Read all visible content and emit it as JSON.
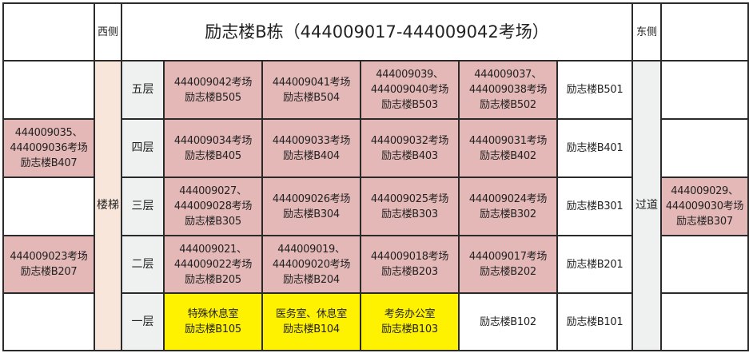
{
  "header": {
    "west_side": "西侧",
    "title": "励志楼B栋（444009017-444009042考场）",
    "east_side": "东侧"
  },
  "stairs_label": "楼梯",
  "corridor_label": "过道",
  "colors": {
    "exam_room": "#e5b8b8",
    "special_room": "#fff200",
    "stairs": "#f9e6da",
    "floor_label": "#eff0f0"
  },
  "rows": [
    {
      "floor": "五层",
      "west": {
        "lines": [],
        "type": "white"
      },
      "cells": [
        {
          "lines": [
            "444009042考场",
            "励志楼B505"
          ],
          "type": "pink"
        },
        {
          "lines": [
            "444009041考场",
            "励志楼B504"
          ],
          "type": "pink"
        },
        {
          "lines": [
            "444009039、",
            "444009040考场",
            "励志楼B503"
          ],
          "type": "pink"
        },
        {
          "lines": [
            "444009037、",
            "444009038考场",
            "励志楼B502"
          ],
          "type": "pink"
        },
        {
          "lines": [
            "励志楼B501"
          ],
          "type": "white"
        }
      ],
      "east": {
        "lines": [],
        "type": "white"
      }
    },
    {
      "floor": "四层",
      "west": {
        "lines": [
          "444009035、",
          "444009036考场",
          "励志楼B407"
        ],
        "type": "pink"
      },
      "cells": [
        {
          "lines": [
            "444009034考场",
            "励志楼B405"
          ],
          "type": "pink"
        },
        {
          "lines": [
            "444009033考场",
            "励志楼B404"
          ],
          "type": "pink"
        },
        {
          "lines": [
            "444009032考场",
            "励志楼B403"
          ],
          "type": "pink"
        },
        {
          "lines": [
            "444009031考场",
            "励志楼B402"
          ],
          "type": "pink"
        },
        {
          "lines": [
            "励志楼B401"
          ],
          "type": "white"
        }
      ],
      "east": {
        "lines": [],
        "type": "white"
      }
    },
    {
      "floor": "三层",
      "west": {
        "lines": [],
        "type": "white"
      },
      "cells": [
        {
          "lines": [
            "444009027、",
            "444009028考场",
            "励志楼B305"
          ],
          "type": "pink"
        },
        {
          "lines": [
            "444009026考场",
            "励志楼B304"
          ],
          "type": "pink"
        },
        {
          "lines": [
            "444009025考场",
            "励志楼B303"
          ],
          "type": "pink"
        },
        {
          "lines": [
            "444009024考场",
            "励志楼B302"
          ],
          "type": "pink"
        },
        {
          "lines": [
            "励志楼B301"
          ],
          "type": "white"
        }
      ],
      "east": {
        "lines": [
          "444009029、",
          "444009030考场",
          "励志楼B307"
        ],
        "type": "pink"
      }
    },
    {
      "floor": "二层",
      "west": {
        "lines": [
          "444009023考场",
          "励志楼B207"
        ],
        "type": "pink"
      },
      "cells": [
        {
          "lines": [
            "444009021、",
            "444009022考场",
            "励志楼B205"
          ],
          "type": "pink"
        },
        {
          "lines": [
            "444009019、",
            "444009020考场",
            "励志楼B204"
          ],
          "type": "pink"
        },
        {
          "lines": [
            "444009018考场",
            "励志楼B203"
          ],
          "type": "pink"
        },
        {
          "lines": [
            "444009017考场",
            "励志楼B202"
          ],
          "type": "pink"
        },
        {
          "lines": [
            "励志楼B201"
          ],
          "type": "white"
        }
      ],
      "east": {
        "lines": [],
        "type": "white"
      }
    },
    {
      "floor": "一层",
      "west": {
        "lines": [],
        "type": "white"
      },
      "cells": [
        {
          "lines": [
            "特殊休息室",
            "励志楼B105"
          ],
          "type": "yellow"
        },
        {
          "lines": [
            "医务室、休息室",
            "励志楼B104"
          ],
          "type": "yellow"
        },
        {
          "lines": [
            "考务办公室",
            "励志楼B103"
          ],
          "type": "yellow"
        },
        {
          "lines": [
            "励志楼B102"
          ],
          "type": "white"
        },
        {
          "lines": [
            "励志楼B101"
          ],
          "type": "white"
        }
      ],
      "east": {
        "lines": [],
        "type": "white"
      }
    }
  ]
}
